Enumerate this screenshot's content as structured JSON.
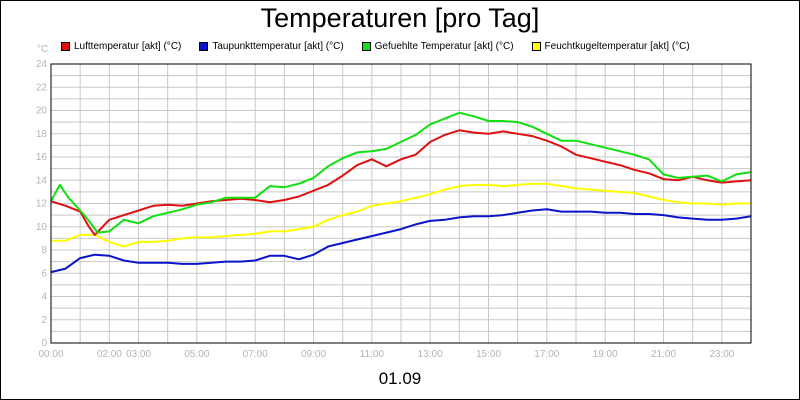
{
  "chart_data": {
    "type": "line",
    "title": "Temperaturen [pro Tag]",
    "xlabel": "01.09",
    "ylabel": "°C",
    "ylim": [
      0,
      24
    ],
    "yticks": [
      0,
      2,
      4,
      6,
      8,
      10,
      12,
      14,
      16,
      18,
      20,
      22,
      24
    ],
    "xlim": [
      0,
      24
    ],
    "xticks": [
      {
        "x": 0,
        "label": "00:00"
      },
      {
        "x": 2,
        "label": "02:00"
      },
      {
        "x": 3,
        "label": "03:00"
      },
      {
        "x": 5,
        "label": "05:00"
      },
      {
        "x": 7,
        "label": "07:00"
      },
      {
        "x": 9,
        "label": "09:00"
      },
      {
        "x": 11,
        "label": "11:00"
      },
      {
        "x": 13,
        "label": "13:00"
      },
      {
        "x": 15,
        "label": "15:00"
      },
      {
        "x": 17,
        "label": "17:00"
      },
      {
        "x": 19,
        "label": "19:00"
      },
      {
        "x": 21,
        "label": "21:00"
      },
      {
        "x": 23,
        "label": "23:00"
      }
    ],
    "grid": true,
    "legend_position": "top",
    "series": [
      {
        "name": "Lufttemperatur [akt] (°C)",
        "color": "#e01010",
        "x": [
          0,
          0.5,
          1,
          1.3,
          1.5,
          2,
          2.5,
          3,
          3.5,
          4,
          4.5,
          5,
          5.5,
          6,
          6.5,
          7,
          7.5,
          8,
          8.5,
          9,
          9.5,
          10,
          10.5,
          11,
          11.5,
          12,
          12.5,
          13,
          13.5,
          14,
          14.5,
          15,
          15.5,
          16,
          16.5,
          17,
          17.5,
          18,
          18.5,
          19,
          19.5,
          20,
          20.5,
          21,
          21.5,
          22,
          22.5,
          23,
          23.5,
          24
        ],
        "y": [
          12.2,
          11.8,
          11.3,
          10.0,
          9.3,
          10.6,
          11.0,
          11.4,
          11.8,
          11.9,
          11.8,
          12.0,
          12.2,
          12.3,
          12.4,
          12.3,
          12.1,
          12.3,
          12.6,
          13.1,
          13.6,
          14.4,
          15.3,
          15.8,
          15.2,
          15.8,
          16.2,
          17.3,
          17.9,
          18.3,
          18.1,
          18.0,
          18.2,
          18.0,
          17.8,
          17.4,
          16.9,
          16.2,
          15.9,
          15.6,
          15.3,
          14.9,
          14.6,
          14.1,
          14.0,
          14.3,
          14.0,
          13.8,
          13.9,
          14.0
        ]
      },
      {
        "name": "Taupunkttemperatur [akt] (°C)",
        "color": "#0a14c8",
        "x": [
          0,
          0.5,
          1,
          1.5,
          2,
          2.5,
          3,
          3.5,
          4,
          4.5,
          5,
          5.5,
          6,
          6.5,
          7,
          7.5,
          8,
          8.5,
          9,
          9.5,
          10,
          10.5,
          11,
          11.5,
          12,
          12.5,
          13,
          13.5,
          14,
          14.5,
          15,
          15.5,
          16,
          16.5,
          17,
          17.5,
          18,
          18.5,
          19,
          19.5,
          20,
          20.5,
          21,
          21.5,
          22,
          22.5,
          23,
          23.5,
          24
        ],
        "y": [
          6.1,
          6.4,
          7.3,
          7.6,
          7.5,
          7.1,
          6.9,
          6.9,
          6.9,
          6.8,
          6.8,
          6.9,
          7.0,
          7.0,
          7.1,
          7.5,
          7.5,
          7.2,
          7.6,
          8.3,
          8.6,
          8.9,
          9.2,
          9.5,
          9.8,
          10.2,
          10.5,
          10.6,
          10.8,
          10.9,
          10.9,
          11.0,
          11.2,
          11.4,
          11.5,
          11.3,
          11.3,
          11.3,
          11.2,
          11.2,
          11.1,
          11.1,
          11.0,
          10.8,
          10.7,
          10.6,
          10.6,
          10.7,
          10.9
        ]
      },
      {
        "name": "Gefuehlte Temperatur [akt] (°C)",
        "color": "#10e010",
        "x": [
          0,
          0.3,
          0.6,
          1,
          1.3,
          1.6,
          2,
          2.5,
          3,
          3.5,
          4,
          4.5,
          5,
          5.5,
          6,
          6.5,
          7,
          7.5,
          8,
          8.5,
          9,
          9.5,
          10,
          10.5,
          11,
          11.5,
          12,
          12.5,
          13,
          13.5,
          14,
          14.5,
          15,
          15.5,
          16,
          16.5,
          17,
          17.5,
          18,
          18.5,
          19,
          19.5,
          20,
          20.5,
          21,
          21.5,
          22,
          22.5,
          23,
          23.5,
          24
        ],
        "y": [
          12.2,
          13.6,
          12.5,
          11.4,
          10.5,
          9.5,
          9.6,
          10.6,
          10.3,
          10.9,
          11.2,
          11.5,
          11.9,
          12.1,
          12.5,
          12.5,
          12.5,
          13.5,
          13.4,
          13.7,
          14.2,
          15.2,
          15.9,
          16.4,
          16.5,
          16.7,
          17.3,
          17.9,
          18.8,
          19.3,
          19.8,
          19.5,
          19.1,
          19.1,
          19.0,
          18.6,
          18.0,
          17.4,
          17.4,
          17.1,
          16.8,
          16.5,
          16.2,
          15.8,
          14.5,
          14.2,
          14.3,
          14.4,
          13.9,
          14.5,
          14.7
        ]
      },
      {
        "name": "Feuchtkugeltemperatur [akt] (°C)",
        "color": "#ffff00",
        "x": [
          0,
          0.5,
          1,
          1.5,
          2,
          2.5,
          3,
          3.5,
          4,
          4.5,
          5,
          5.5,
          6,
          6.5,
          7,
          7.5,
          8,
          8.5,
          9,
          9.5,
          10,
          10.5,
          11,
          11.5,
          12,
          12.5,
          13,
          13.5,
          14,
          14.5,
          15,
          15.5,
          16,
          16.5,
          17,
          17.5,
          18,
          18.5,
          19,
          19.5,
          20,
          20.5,
          21,
          21.5,
          22,
          22.5,
          23,
          23.5,
          24
        ],
        "y": [
          8.8,
          8.8,
          9.3,
          9.3,
          8.7,
          8.3,
          8.7,
          8.7,
          8.8,
          9.0,
          9.1,
          9.1,
          9.2,
          9.3,
          9.4,
          9.6,
          9.6,
          9.8,
          10.0,
          10.6,
          11.0,
          11.3,
          11.8,
          12.0,
          12.2,
          12.5,
          12.8,
          13.2,
          13.5,
          13.6,
          13.6,
          13.5,
          13.6,
          13.7,
          13.7,
          13.5,
          13.3,
          13.2,
          13.1,
          13.0,
          12.9,
          12.6,
          12.3,
          12.1,
          12.0,
          12.0,
          11.9,
          12.0,
          12.0
        ]
      }
    ]
  }
}
